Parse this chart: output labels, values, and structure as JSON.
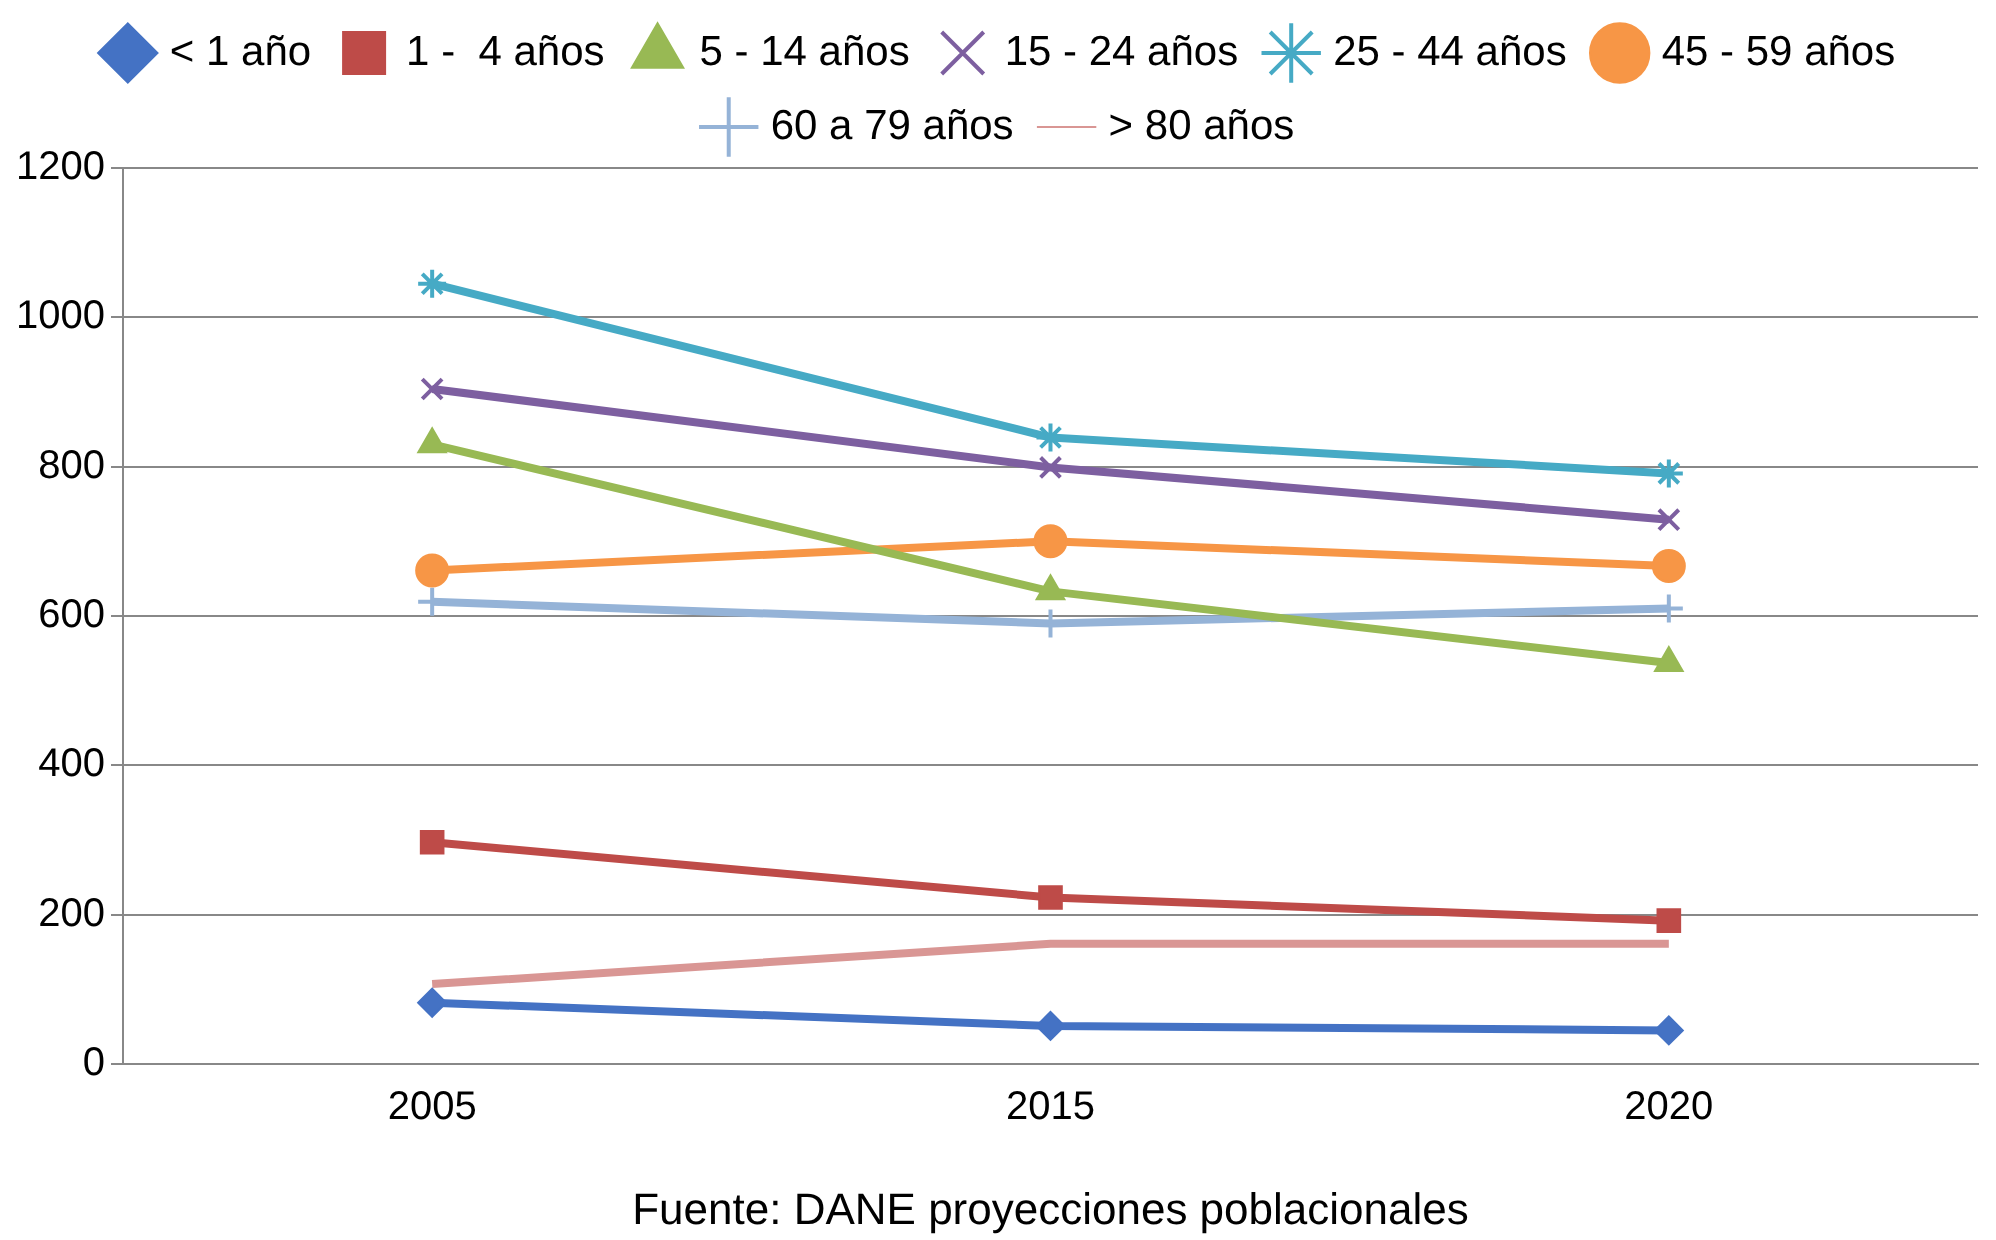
{
  "chart_data": {
    "type": "line",
    "categories": [
      "2005",
      "2015",
      "2020"
    ],
    "series": [
      {
        "name": "< 1 año",
        "color": "#4472c4",
        "marker": "diamond",
        "values": [
          82,
          51,
          45
        ]
      },
      {
        "name": "1 -  4 años",
        "color": "#be4b48",
        "marker": "square",
        "values": [
          297,
          223,
          192
        ]
      },
      {
        "name": "5 - 14 años",
        "color": "#98b954",
        "marker": "triangle",
        "values": [
          830,
          633,
          537
        ]
      },
      {
        "name": "15 - 24 años",
        "color": "#7d5fa0",
        "marker": "cross",
        "values": [
          904,
          799,
          729
        ]
      },
      {
        "name": "25 - 44 años",
        "color": "#46aac5",
        "marker": "cross",
        "values": [
          1045,
          839,
          791
        ]
      },
      {
        "name": "45 - 59 años",
        "color": "#f79646",
        "marker": "circle",
        "values": [
          661,
          700,
          667
        ]
      },
      {
        "name": "60 a 79 años",
        "color": "#95b3d7",
        "marker": "cross",
        "values": [
          619,
          590,
          610
        ]
      },
      {
        "name": "> 80 años",
        "color": "#d99694",
        "marker": "none",
        "values": [
          107,
          161,
          161
        ]
      }
    ],
    "ylim": [
      0,
      1200
    ],
    "yticks": [
      0,
      200,
      400,
      600,
      800,
      1000,
      1200
    ],
    "grid": "y",
    "legend": "top",
    "annotations": [
      "Fuente: DANE proyecciones poblacionales"
    ]
  }
}
